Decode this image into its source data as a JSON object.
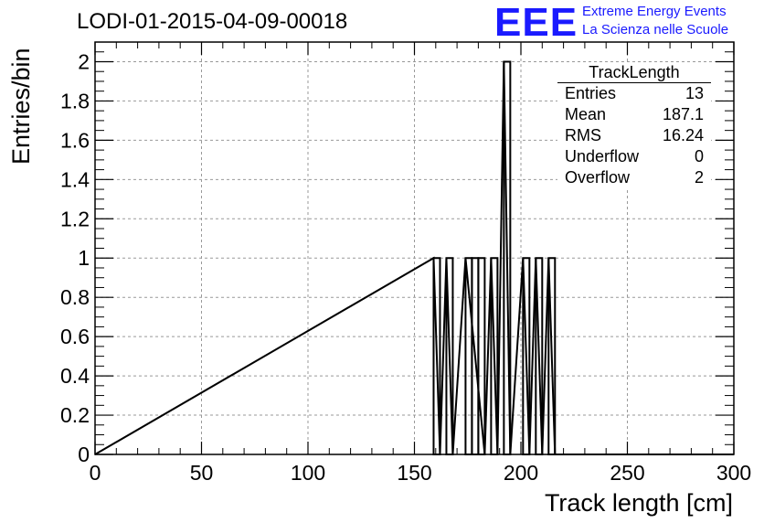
{
  "title": "LODI-01-2015-04-09-00018",
  "logo": {
    "letters": "EEE",
    "line1": "Extreme Energy Events",
    "line2": "La Scienza nelle Scuole",
    "color": "#1a1aff"
  },
  "stats": {
    "name": "TrackLength",
    "rows": [
      {
        "key": "Entries",
        "value": "13"
      },
      {
        "key": "Mean",
        "value": "187.1"
      },
      {
        "key": "RMS",
        "value": "16.24"
      },
      {
        "key": "Underflow",
        "value": "0"
      },
      {
        "key": "Overflow",
        "value": "2"
      }
    ]
  },
  "chart_data": {
    "type": "bar",
    "xlabel": "Track length [cm]",
    "ylabel": "Entries/bin",
    "xlim": [
      0,
      300
    ],
    "ylim": [
      0,
      2.1
    ],
    "grid": true,
    "bin_width": 3,
    "x_ticks": [
      "0",
      "50",
      "100",
      "150",
      "200",
      "250",
      "300"
    ],
    "y_ticks": [
      "0",
      "0.2",
      "0.4",
      "0.6",
      "0.8",
      "1",
      "1.2",
      "1.4",
      "1.6",
      "1.8",
      "2"
    ],
    "bins": [
      {
        "x_low": 159,
        "x_high": 162,
        "count": 1
      },
      {
        "x_low": 165,
        "x_high": 168,
        "count": 1
      },
      {
        "x_low": 174,
        "x_high": 177,
        "count": 1
      },
      {
        "x_low": 177,
        "x_high": 180,
        "count": 1
      },
      {
        "x_low": 180,
        "x_high": 183,
        "count": 1
      },
      {
        "x_low": 186,
        "x_high": 189,
        "count": 1
      },
      {
        "x_low": 192,
        "x_high": 195,
        "count": 2
      },
      {
        "x_low": 201,
        "x_high": 204,
        "count": 1
      },
      {
        "x_low": 207,
        "x_high": 210,
        "count": 1
      },
      {
        "x_low": 213,
        "x_high": 216,
        "count": 1
      }
    ]
  }
}
